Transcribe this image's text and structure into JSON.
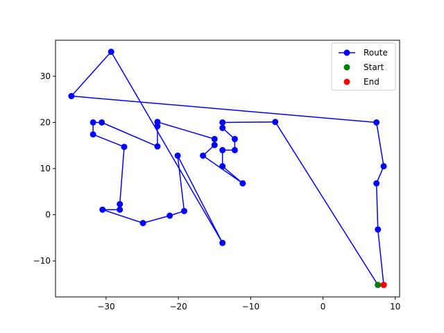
{
  "chart_data": {
    "type": "line",
    "title": "",
    "xlabel": "",
    "ylabel": "",
    "xlim": [
      -37,
      10.6
    ],
    "ylim": [
      -17.8,
      37.8
    ],
    "xticks": [
      -30,
      -20,
      -10,
      0,
      10
    ],
    "yticks": [
      -10,
      0,
      10,
      20,
      30
    ],
    "grid": false,
    "legend_placement": "top-right",
    "series": [
      {
        "name": "Route",
        "color": "#0000ff",
        "marker": "circle",
        "points": [
          [
            7.6,
            -15.2
          ],
          [
            -6.6,
            20.1
          ],
          [
            -13.9,
            20.0
          ],
          [
            -13.9,
            18.8
          ],
          [
            -12.2,
            16.4
          ],
          [
            -12.2,
            14.0
          ],
          [
            -13.9,
            14.0
          ],
          [
            -13.9,
            10.5
          ],
          [
            -11.1,
            6.8
          ],
          [
            -16.6,
            12.8
          ],
          [
            -15.0,
            15.1
          ],
          [
            -15.0,
            16.4
          ],
          [
            -22.9,
            20.1
          ],
          [
            -22.9,
            19.2
          ],
          [
            -22.9,
            14.8
          ],
          [
            -30.6,
            20.0
          ],
          [
            -31.8,
            20.0
          ],
          [
            -31.8,
            17.4
          ],
          [
            -27.5,
            14.7
          ],
          [
            -28.1,
            2.3
          ],
          [
            -28.1,
            1.1
          ],
          [
            -30.5,
            1.1
          ],
          [
            -24.9,
            -1.8
          ],
          [
            -21.2,
            -0.2
          ],
          [
            -19.2,
            0.8
          ],
          [
            -20.1,
            12.8
          ],
          [
            -13.9,
            -6.1
          ],
          [
            -29.3,
            35.3
          ],
          [
            -34.8,
            25.7
          ],
          [
            7.4,
            20.0
          ],
          [
            8.4,
            10.5
          ],
          [
            7.4,
            6.8
          ],
          [
            7.6,
            -3.2
          ],
          [
            8.4,
            -15.2
          ]
        ]
      },
      {
        "name": "Start",
        "color": "#008000",
        "marker": "circle",
        "points": [
          [
            7.6,
            -15.2
          ]
        ]
      },
      {
        "name": "End",
        "color": "#ff0000",
        "marker": "circle",
        "points": [
          [
            8.4,
            -15.2
          ]
        ]
      }
    ]
  }
}
